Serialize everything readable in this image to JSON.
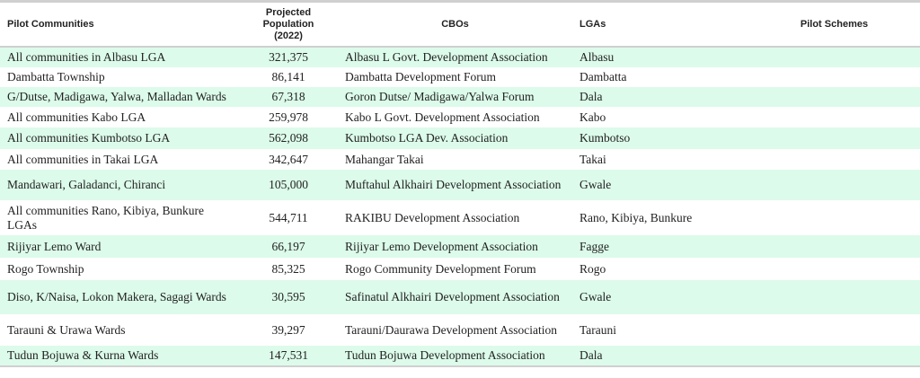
{
  "headers": [
    "Pilot Communities",
    "Projected Population (2022)",
    "CBOs",
    "LGAs",
    "Pilot Schemes"
  ],
  "rows": [
    [
      "All communities in Albasu LGA",
      "321,375",
      "Albasu L Govt. Development Association",
      "Albasu",
      ""
    ],
    [
      "Dambatta Township",
      "86,141",
      "Dambatta Development Forum",
      "Dambatta",
      ""
    ],
    [
      "G/Dutse, Madigawa, Yalwa, Malladan Wards",
      "67,318",
      "Goron Dutse/ Madigawa/Yalwa Forum",
      "Dala",
      ""
    ],
    [
      "All communities Kabo LGA",
      "259,978",
      "Kabo L Govt. Development Association",
      "Kabo",
      ""
    ],
    [
      "All communities Kumbotso LGA",
      "562,098",
      "Kumbotso LGA Dev. Association",
      "Kumbotso",
      ""
    ],
    [
      "All communities in Takai LGA",
      "342,647",
      "Mahangar Takai",
      "Takai",
      ""
    ],
    [
      "Mandawari, Galadanci, Chiranci",
      "105,000",
      "Muftahul Alkhairi Development Association",
      "Gwale",
      ""
    ],
    [
      "All communities Rano, Kibiya, Bunkure LGAs",
      "544,711",
      "RAKIBU Development Association",
      "Rano, Kibiya, Bunkure",
      ""
    ],
    [
      "Rijiyar Lemo Ward",
      "66,197",
      "Rijiyar Lemo Development Association",
      "Fagge",
      ""
    ],
    [
      "Rogo Township",
      "85,325",
      "Rogo Community Development Forum",
      "Rogo",
      ""
    ],
    [
      "Diso, K/Naisa, Lokon Makera, Sagagi Wards",
      "30,595",
      "Safinatul Alkhairi Development Association",
      "Gwale",
      ""
    ],
    [
      "Tarauni & Urawa Wards",
      "39,297",
      "Tarauni/Daurawa Development Association",
      "Tarauni",
      ""
    ],
    [
      "Tudun Bojuwa & Kurna Wards",
      "147,531",
      "Tudun Bojuwa Development Association",
      "Dala",
      ""
    ]
  ],
  "row_heights": [],
  "colors": {
    "stripe": "#dcfbea"
  }
}
